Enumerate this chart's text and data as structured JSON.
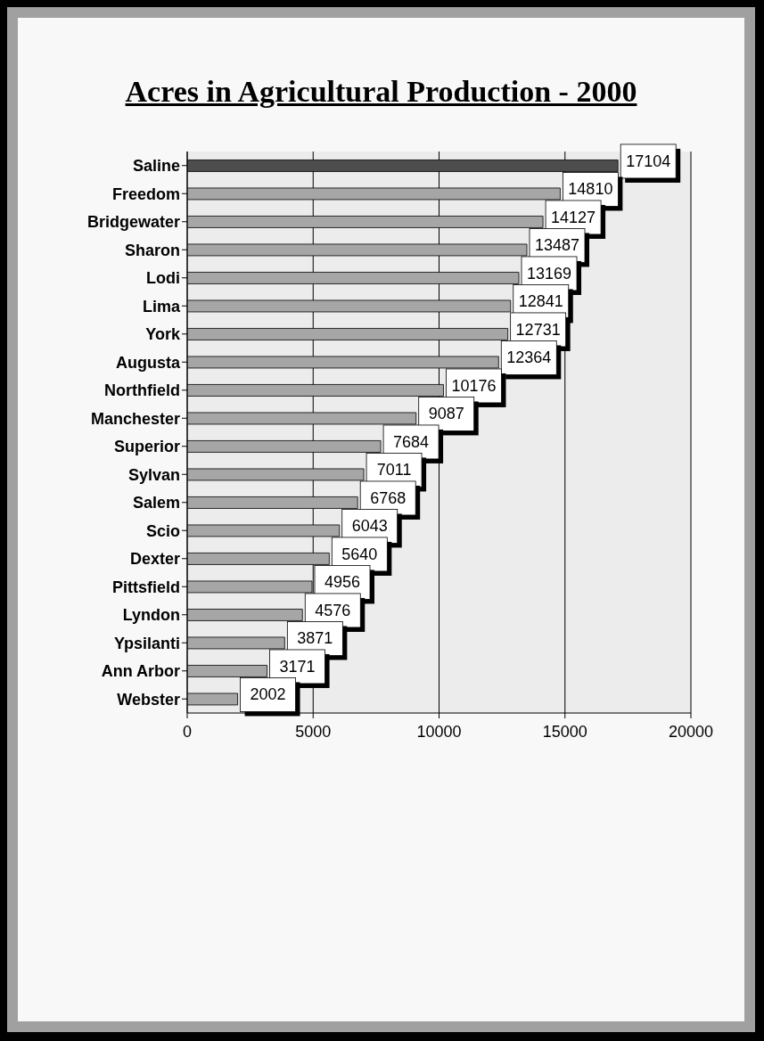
{
  "chart_data": {
    "type": "bar",
    "orientation": "horizontal",
    "title": "Acres in Agricultural Production - 2000",
    "categories": [
      "Saline",
      "Freedom",
      "Bridgewater",
      "Sharon",
      "Lodi",
      "Lima",
      "York",
      "Augusta",
      "Northfield",
      "Manchester",
      "Superior",
      "Sylvan",
      "Salem",
      "Scio",
      "Dexter",
      "Pittsfield",
      "Lyndon",
      "Ypsilanti",
      "Ann Arbor",
      "Webster"
    ],
    "values": [
      17104,
      14810,
      14127,
      13487,
      13169,
      12841,
      12731,
      12364,
      10176,
      9087,
      7684,
      7011,
      6768,
      6043,
      5640,
      4956,
      4576,
      3871,
      3171,
      2002
    ],
    "colors": [
      "#4d4d4d",
      "#a6a6a6",
      "#a6a6a6",
      "#a6a6a6",
      "#a6a6a6",
      "#a6a6a6",
      "#a6a6a6",
      "#a6a6a6",
      "#a6a6a6",
      "#a6a6a6",
      "#a6a6a6",
      "#a6a6a6",
      "#a6a6a6",
      "#a6a6a6",
      "#a6a6a6",
      "#a6a6a6",
      "#a6a6a6",
      "#a6a6a6",
      "#a6a6a6",
      "#a6a6a6"
    ],
    "xlim": [
      0,
      20000
    ],
    "xticks": [
      0,
      5000,
      10000,
      15000,
      20000
    ],
    "grid": "x",
    "data_labels": true
  }
}
